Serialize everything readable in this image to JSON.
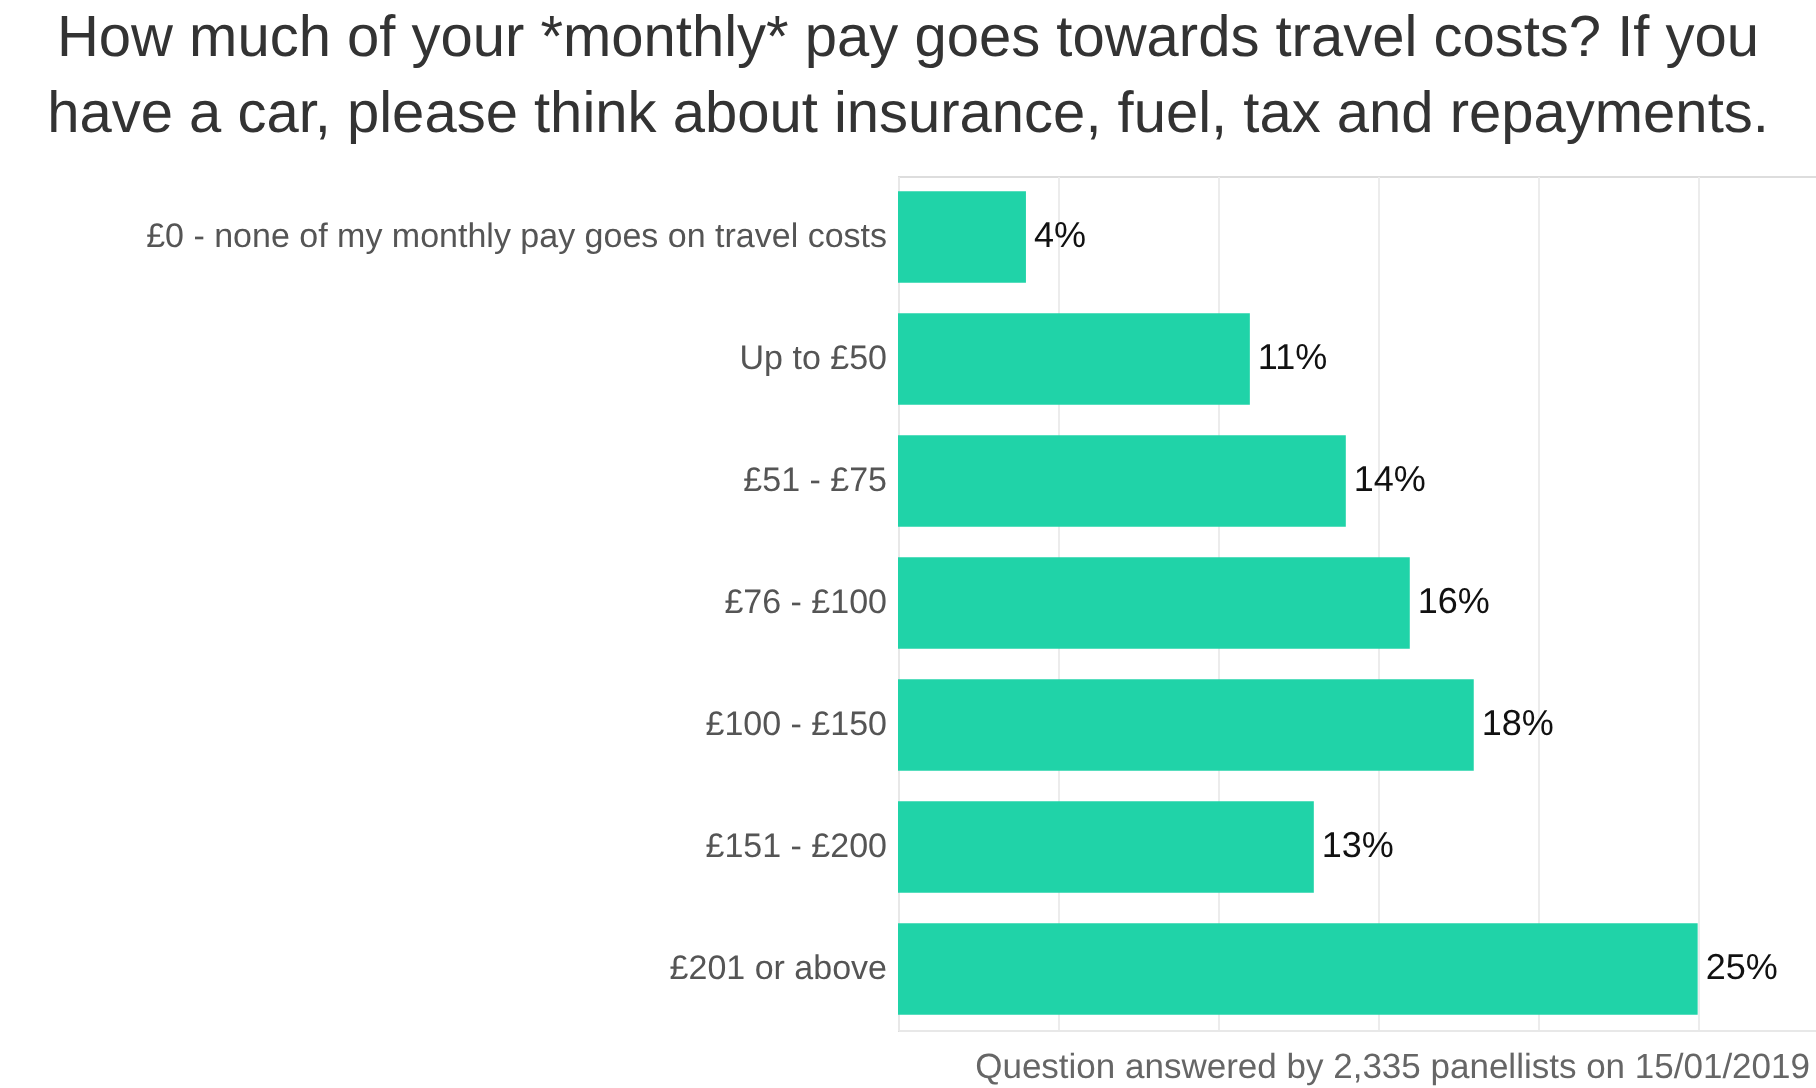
{
  "chart_data": {
    "type": "bar",
    "orientation": "horizontal",
    "title": "How much of your *monthly* pay goes towards travel costs? If you have a car, please think about insurance, fuel, tax and repayments.",
    "categories": [
      "£0 - none of my monthly pay goes on travel costs",
      "Up to £50",
      "£51 - £75",
      "£76 - £100",
      "£100 - £150",
      "£151 - £200",
      "£201 or above"
    ],
    "values": [
      4,
      11,
      14,
      16,
      18,
      13,
      25
    ],
    "value_labels": [
      "4%",
      "11%",
      "14%",
      "16%",
      "18%",
      "13%",
      "25%"
    ],
    "color": "#20d3a8",
    "xlim": [
      0,
      28.7
    ],
    "xticks": [
      {
        "value": 5,
        "label": null
      },
      {
        "value": 10,
        "label": null
      },
      {
        "value": 15,
        "label": null
      },
      {
        "value": 20,
        "label": null
      },
      {
        "value": 25,
        "label": null
      }
    ],
    "grid": "x",
    "tick_labels": "y",
    "annotations": [
      "Question answered by 2,335 panellists on 15/01/2019"
    ]
  }
}
